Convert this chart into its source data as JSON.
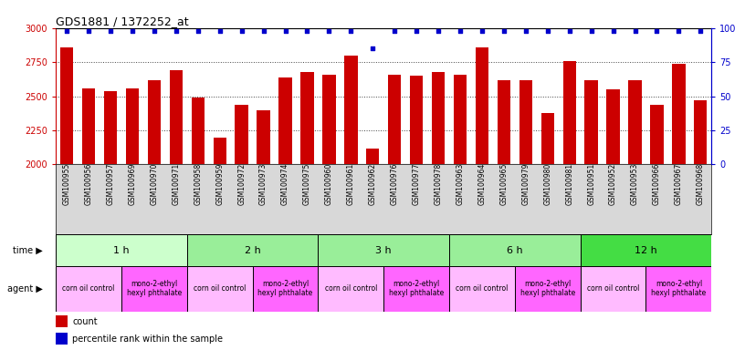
{
  "title": "GDS1881 / 1372252_at",
  "samples": [
    "GSM100955",
    "GSM100956",
    "GSM100957",
    "GSM100969",
    "GSM100970",
    "GSM100971",
    "GSM100958",
    "GSM100959",
    "GSM100972",
    "GSM100973",
    "GSM100974",
    "GSM100975",
    "GSM100960",
    "GSM100961",
    "GSM100962",
    "GSM100976",
    "GSM100977",
    "GSM100978",
    "GSM100963",
    "GSM100964",
    "GSM100965",
    "GSM100979",
    "GSM100980",
    "GSM100981",
    "GSM100951",
    "GSM100952",
    "GSM100953",
    "GSM100966",
    "GSM100967",
    "GSM100968"
  ],
  "bar_values": [
    2860,
    2560,
    2540,
    2560,
    2620,
    2690,
    2490,
    2200,
    2440,
    2400,
    2640,
    2680,
    2660,
    2800,
    2120,
    2660,
    2650,
    2680,
    2660,
    2855,
    2620,
    2620,
    2380,
    2760,
    2620,
    2550,
    2615,
    2440,
    2740,
    2470
  ],
  "percentile_values": [
    98,
    98,
    98,
    98,
    98,
    98,
    98,
    98,
    98,
    98,
    98,
    98,
    98,
    98,
    85,
    98,
    98,
    98,
    98,
    98,
    98,
    98,
    98,
    98,
    98,
    98,
    98,
    98,
    98,
    98
  ],
  "ylim_left": [
    2000,
    3000
  ],
  "ylim_right": [
    0,
    100
  ],
  "yticks_left": [
    2000,
    2250,
    2500,
    2750,
    3000
  ],
  "yticks_right": [
    0,
    25,
    50,
    75,
    100
  ],
  "bar_color": "#cc0000",
  "dot_color": "#0000cc",
  "time_groups": [
    {
      "label": "1 h",
      "start": 0,
      "end": 6,
      "color": "#ccffcc"
    },
    {
      "label": "2 h",
      "start": 6,
      "end": 12,
      "color": "#99ee99"
    },
    {
      "label": "3 h",
      "start": 12,
      "end": 18,
      "color": "#99ee99"
    },
    {
      "label": "6 h",
      "start": 18,
      "end": 24,
      "color": "#99ee99"
    },
    {
      "label": "12 h",
      "start": 24,
      "end": 30,
      "color": "#44dd44"
    }
  ],
  "agent_groups": [
    {
      "label": "corn oil control",
      "start": 0,
      "end": 3,
      "color": "#ffbbff"
    },
    {
      "label": "mono-2-ethyl\nhexyl phthalate",
      "start": 3,
      "end": 6,
      "color": "#ff66ff"
    },
    {
      "label": "corn oil control",
      "start": 6,
      "end": 9,
      "color": "#ffbbff"
    },
    {
      "label": "mono-2-ethyl\nhexyl phthalate",
      "start": 9,
      "end": 12,
      "color": "#ff66ff"
    },
    {
      "label": "corn oil control",
      "start": 12,
      "end": 15,
      "color": "#ffbbff"
    },
    {
      "label": "mono-2-ethyl\nhexyl phthalate",
      "start": 15,
      "end": 18,
      "color": "#ff66ff"
    },
    {
      "label": "corn oil control",
      "start": 18,
      "end": 21,
      "color": "#ffbbff"
    },
    {
      "label": "mono-2-ethyl\nhexyl phthalate",
      "start": 21,
      "end": 24,
      "color": "#ff66ff"
    },
    {
      "label": "corn oil control",
      "start": 24,
      "end": 27,
      "color": "#ffbbff"
    },
    {
      "label": "mono-2-ethyl\nhexyl phthalate",
      "start": 27,
      "end": 30,
      "color": "#ff66ff"
    }
  ],
  "grid_color": "#444444",
  "bg_color": "#ffffff",
  "plot_bg_color": "#ffffff",
  "xtick_bg_color": "#d8d8d8",
  "left_axis_color": "#cc0000",
  "right_axis_color": "#0000cc",
  "border_color": "#000000"
}
